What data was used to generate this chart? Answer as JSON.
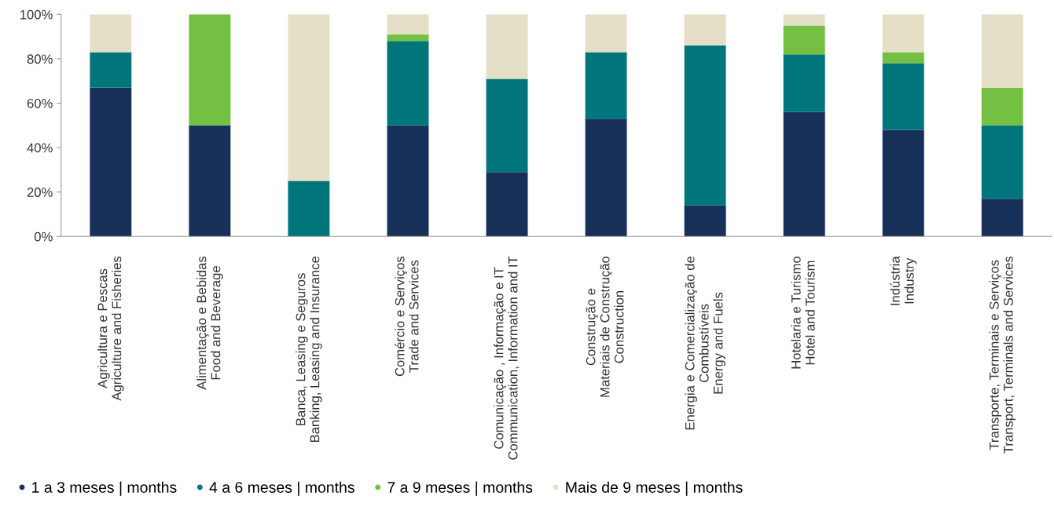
{
  "chart_data": {
    "type": "bar",
    "stacked": true,
    "categories": [
      "Agricultura e Pescas\nAgriculture and Fisheries",
      "Alimentação e Bebidas\nFood and Beverage",
      "Banca, Leasing e Seguros\nBanking, Leasing and Insurance",
      "Comércio e Serviços\nTrade and Services",
      "Comunicação , Informação e IT\nCommunication, Information and IT",
      "Construção e\nMateriais de Construção\nConstruction",
      "Energia e Comercialização de\nCombustíveis\nEnergy and Fuels",
      "Hotelaria e Turismo\nHotel and Tourism",
      "Indústria\nIndustry",
      "Transporte, Terminais e Serviços\nTransport, Terminals and Services"
    ],
    "series": [
      {
        "name": "1 a 3 meses | months",
        "color": "#17305a",
        "values": [
          67,
          50,
          0,
          50,
          29,
          53,
          14,
          56,
          48,
          17
        ]
      },
      {
        "name": "4 a 6 meses | months",
        "color": "#00767a",
        "values": [
          16,
          0,
          25,
          38,
          42,
          30,
          72,
          26,
          30,
          33
        ]
      },
      {
        "name": "7 a 9 meses | months",
        "color": "#74c043",
        "values": [
          0,
          50,
          0,
          3,
          0,
          0,
          0,
          13,
          5,
          17
        ]
      },
      {
        "name": "Mais de 9 meses | months",
        "color": "#e4dfc6",
        "values": [
          17,
          0,
          75,
          9,
          29,
          17,
          14,
          5,
          17,
          33
        ]
      }
    ],
    "ylim": [
      0,
      100
    ],
    "yticks": [
      {
        "value": 0,
        "label": "0%"
      },
      {
        "value": 20,
        "label": "20%"
      },
      {
        "value": 40,
        "label": "40%"
      },
      {
        "value": 60,
        "label": "60%"
      },
      {
        "value": 80,
        "label": "80%"
      },
      {
        "value": 100,
        "label": "100%"
      }
    ],
    "grid": false,
    "legend": "bottom"
  }
}
